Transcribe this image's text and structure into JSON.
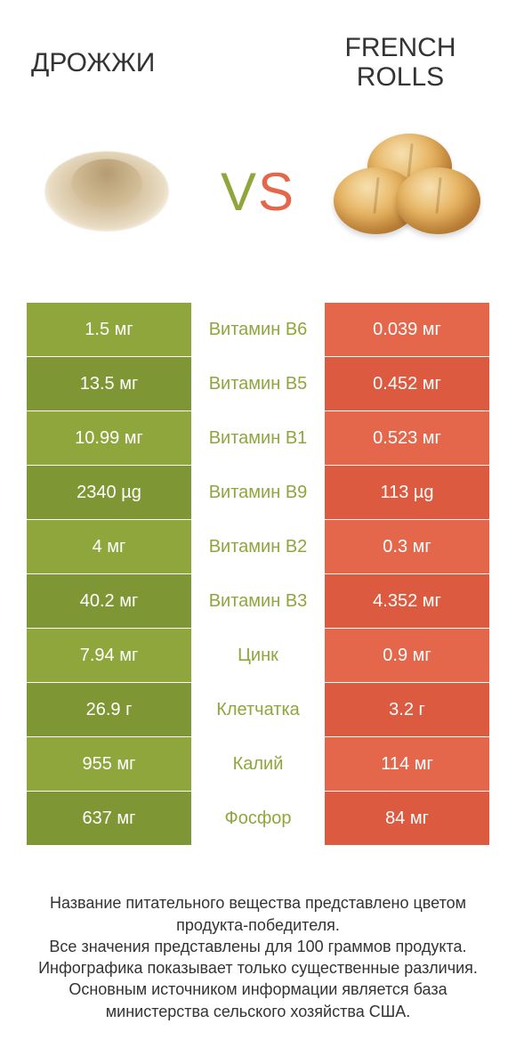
{
  "colors": {
    "green": "#8fa63c",
    "green_dark": "#7f9635",
    "orange": "#e4674c",
    "orange_dark": "#dc5a3f",
    "white": "#ffffff",
    "text": "#333333"
  },
  "header": {
    "left_title": "ДРОЖЖИ",
    "right_title": "FRENCH\nROLLS",
    "vs_v": "V",
    "vs_s": "S"
  },
  "rows": [
    {
      "left": "1.5 мг",
      "mid": "Витамин B6",
      "right": "0.039 мг",
      "mid_color": "green"
    },
    {
      "left": "13.5 мг",
      "mid": "Витамин B5",
      "right": "0.452 мг",
      "mid_color": "green"
    },
    {
      "left": "10.99 мг",
      "mid": "Витамин B1",
      "right": "0.523 мг",
      "mid_color": "green"
    },
    {
      "left": "2340 µg",
      "mid": "Витамин B9",
      "right": "113 µg",
      "mid_color": "green"
    },
    {
      "left": "4 мг",
      "mid": "Витамин B2",
      "right": "0.3 мг",
      "mid_color": "green"
    },
    {
      "left": "40.2 мг",
      "mid": "Витамин B3",
      "right": "4.352 мг",
      "mid_color": "green"
    },
    {
      "left": "7.94 мг",
      "mid": "Цинк",
      "right": "0.9 мг",
      "mid_color": "green"
    },
    {
      "left": "26.9 г",
      "mid": "Клетчатка",
      "right": "3.2 г",
      "mid_color": "green"
    },
    {
      "left": "955 мг",
      "mid": "Калий",
      "right": "114 мг",
      "mid_color": "green"
    },
    {
      "left": "637 мг",
      "mid": "Фосфор",
      "right": "84 мг",
      "mid_color": "green"
    }
  ],
  "row_style": {
    "left_bg_even": "#8fa63c",
    "left_bg_odd": "#7f9635",
    "right_bg_even": "#e4674c",
    "right_bg_odd": "#dc5a3f",
    "mid_bg": "#ffffff"
  },
  "footer": "Название питательного вещества представлено цветом продукта-победителя.\nВсе значения представлены для 100 граммов продукта.\nИнфографика показывает только существенные различия.\nОсновным источником информации является база министерства сельского хозяйства США."
}
